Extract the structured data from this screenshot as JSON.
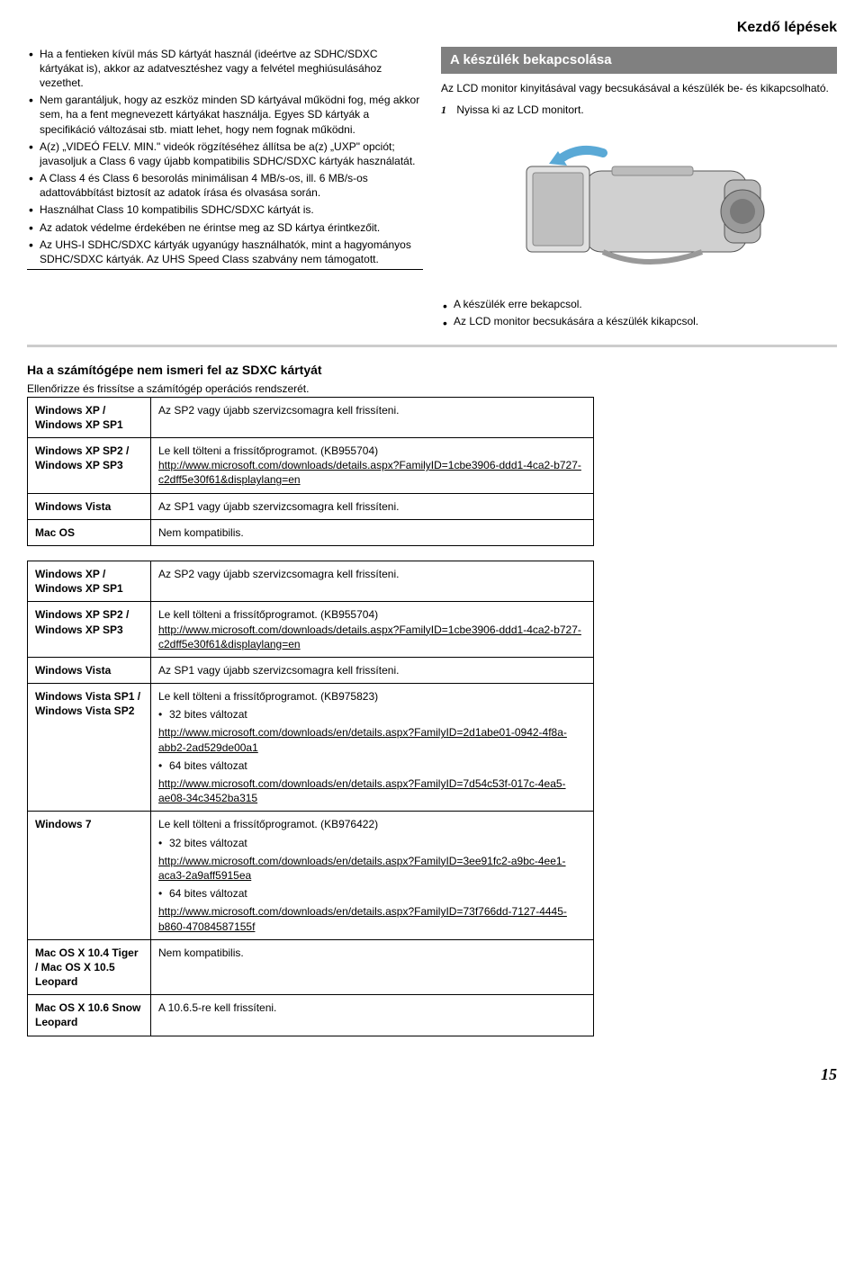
{
  "header": "Kezdő lépések",
  "left_bullets": [
    "Ha a fentieken kívül más SD kártyát használ (ideértve az SDHC/SDXC kártyákat is), akkor az adatvesztéshez vagy a felvétel meghiúsulásához vezethet.",
    "Nem garantáljuk, hogy az eszköz minden SD kártyával működni fog, még akkor sem, ha a fent megnevezett kártyákat használja. Egyes SD kártyák a specifikáció változásai stb. miatt lehet, hogy nem fognak működni.",
    "A(z) „VIDEÓ FELV. MIN.\" videók rögzítéséhez állítsa be a(z) „UXP\" opciót; javasoljuk a Class 6 vagy újabb kompatibilis SDHC/SDXC kártyák használatát.",
    "A Class 4 és Class 6 besorolás minimálisan 4 MB/s-os, ill. 6 MB/s-os adattovábbítást biztosít az adatok írása és olvasása során.",
    "Használhat Class 10 kompatibilis SDHC/SDXC kártyát is.",
    "Az adatok védelme érdekében ne érintse meg az SD kártya érintkezőit.",
    "Az UHS-I SDHC/SDXC kártyák ugyanúgy használhatók, mint a hagyományos SDHC/SDXC kártyák.\nAz UHS Speed Class szabvány nem támogatott."
  ],
  "right": {
    "title": "A készülék bekapcsolása",
    "intro": "Az LCD monitor kinyitásával vagy becsukásával a készülék be- és kikapcsolható.",
    "step1": "Nyissa ki az LCD monitort.",
    "result_bullets": [
      "A készülék erre bekapcsol.",
      "Az LCD monitor becsukására a készülék kikapcsol."
    ]
  },
  "sdxc": {
    "heading": "Ha a számítógépe nem ismeri fel az SDXC kártyát",
    "sub": "Ellenőrizze és frissítse a számítógép operációs rendszerét."
  },
  "table1": [
    {
      "os": "Windows XP / Windows XP SP1",
      "txt": "Az SP2 vagy újabb szervizcsomagra kell frissíteni."
    },
    {
      "os": "Windows XP SP2 / Windows XP SP3",
      "txt": "Le kell tölteni a frissítőprogramot. (KB955704)",
      "link": "http://www.microsoft.com/downloads/details.aspx?FamilyID=1cbe3906-ddd1-4ca2-b727-c2dff5e30f61&displaylang=en"
    },
    {
      "os": "Windows Vista",
      "txt": "Az SP1 vagy újabb szervizcsomagra kell frissíteni."
    },
    {
      "os": "Mac OS",
      "txt": "Nem kompatibilis."
    }
  ],
  "table2": [
    {
      "os": "Windows XP / Windows XP SP1",
      "txt": "Az SP2 vagy újabb szervizcsomagra kell frissíteni."
    },
    {
      "os": "Windows XP SP2 / Windows XP SP3",
      "txt": "Le kell tölteni a frissítőprogramot. (KB955704)",
      "link": "http://www.microsoft.com/downloads/details.aspx?FamilyID=1cbe3906-ddd1-4ca2-b727-c2dff5e30f61&displaylang=en"
    },
    {
      "os": "Windows Vista",
      "txt": "Az SP1 vagy újabb szervizcsomagra kell frissíteni."
    },
    {
      "os": "Windows Vista SP1 / Windows Vista SP2",
      "txt": "Le kell tölteni a frissítőprogramot. (KB975823)",
      "b32": "32 bites változat",
      "link32": "http://www.microsoft.com/downloads/en/details.aspx?FamilyID=2d1abe01-0942-4f8a-abb2-2ad529de00a1",
      "b64": "64 bites változat",
      "link64": "http://www.microsoft.com/downloads/en/details.aspx?FamilyID=7d54c53f-017c-4ea5-ae08-34c3452ba315"
    },
    {
      "os": "Windows 7",
      "txt": "Le kell tölteni a frissítőprogramot. (KB976422)",
      "b32": "32 bites változat",
      "link32": "http://www.microsoft.com/downloads/en/details.aspx?FamilyID=3ee91fc2-a9bc-4ee1-aca3-2a9aff5915ea",
      "b64": "64 bites változat",
      "link64": "http://www.microsoft.com/downloads/en/details.aspx?FamilyID=73f766dd-7127-4445-b860-47084587155f"
    },
    {
      "os": "Mac OS X 10.4 Tiger / Mac OS X 10.5 Leopard",
      "txt": "Nem kompatibilis."
    },
    {
      "os": "Mac OS X 10.6 Snow Leopard",
      "txt": "A 10.6.5-re kell frissíteni."
    }
  ],
  "pagenum": "15"
}
